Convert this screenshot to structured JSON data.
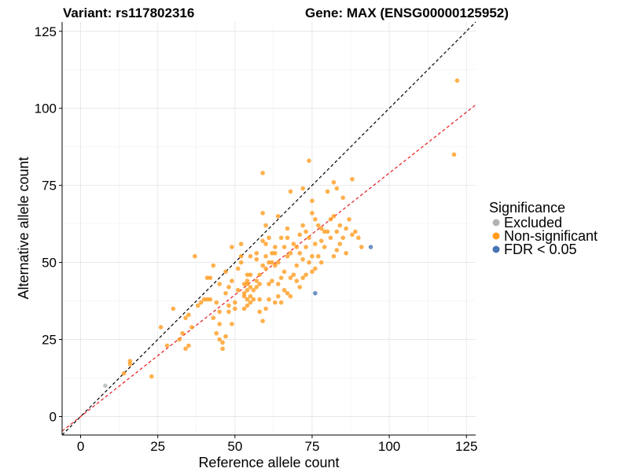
{
  "chart_data": {
    "type": "scatter",
    "title_left": "Variant: rs117802316",
    "title_right": "Gene: MAX (ENSG00000125952)",
    "xlabel": "Reference allele count",
    "ylabel": "Alternative allele count",
    "xlim": [
      -6,
      128
    ],
    "ylim": [
      -6,
      128
    ],
    "xticks": [
      0,
      25,
      50,
      75,
      100,
      125
    ],
    "yticks": [
      0,
      25,
      50,
      75,
      100,
      125
    ],
    "grid": true,
    "reference_lines": [
      {
        "name": "identity",
        "color": "#000000",
        "style": "dashed",
        "slope": 1,
        "intercept": 0
      },
      {
        "name": "fitted",
        "color": "#e41a1c",
        "style": "dashed",
        "slope": 0.79,
        "intercept": 0
      }
    ],
    "legend": {
      "title": "Significance",
      "position": "right",
      "entries": [
        {
          "label": "Excluded",
          "color": "#b3b3b3"
        },
        {
          "label": "Non-significant",
          "color": "#ff9a1a"
        },
        {
          "label": "FDR < 0.05",
          "color": "#4575b4"
        }
      ]
    },
    "series": [
      {
        "name": "Excluded",
        "color": "#b3b3b3",
        "points": [
          [
            8,
            10
          ]
        ]
      },
      {
        "name": "FDR < 0.05",
        "color": "#4575b4",
        "points": [
          [
            76,
            40
          ],
          [
            94,
            55
          ]
        ]
      },
      {
        "name": "Non-significant",
        "color": "#ff9a1a",
        "points": [
          [
            14,
            14
          ],
          [
            16,
            18
          ],
          [
            16,
            17
          ],
          [
            23,
            13
          ],
          [
            26,
            29
          ],
          [
            28,
            23
          ],
          [
            30,
            35
          ],
          [
            32,
            25
          ],
          [
            33,
            27
          ],
          [
            34,
            22
          ],
          [
            34,
            32
          ],
          [
            35,
            23
          ],
          [
            35,
            33
          ],
          [
            36,
            29
          ],
          [
            37,
            52
          ],
          [
            38,
            36
          ],
          [
            39,
            37
          ],
          [
            40,
            38
          ],
          [
            41,
            38
          ],
          [
            41,
            45
          ],
          [
            42,
            38
          ],
          [
            42,
            45
          ],
          [
            43,
            32
          ],
          [
            43,
            49
          ],
          [
            44,
            37
          ],
          [
            44,
            27
          ],
          [
            45,
            25
          ],
          [
            45,
            30
          ],
          [
            45,
            34
          ],
          [
            45,
            43
          ],
          [
            46,
            22
          ],
          [
            46,
            24
          ],
          [
            47,
            40
          ],
          [
            47,
            47
          ],
          [
            47,
            26
          ],
          [
            48,
            34
          ],
          [
            48,
            36
          ],
          [
            48,
            42
          ],
          [
            49,
            30
          ],
          [
            49,
            44
          ],
          [
            49,
            55
          ],
          [
            50,
            35
          ],
          [
            50,
            37
          ],
          [
            51,
            41
          ],
          [
            51,
            48
          ],
          [
            52,
            50
          ],
          [
            52,
            52
          ],
          [
            52,
            56
          ],
          [
            53,
            35
          ],
          [
            53,
            39
          ],
          [
            53,
            40
          ],
          [
            53,
            43
          ],
          [
            54,
            36
          ],
          [
            54,
            38
          ],
          [
            54,
            41
          ],
          [
            54,
            43
          ],
          [
            54,
            44
          ],
          [
            54,
            46
          ],
          [
            55,
            37
          ],
          [
            55,
            39
          ],
          [
            55,
            42
          ],
          [
            55,
            46
          ],
          [
            55,
            52
          ],
          [
            56,
            38
          ],
          [
            56,
            41
          ],
          [
            57,
            42
          ],
          [
            57,
            44
          ],
          [
            57,
            51
          ],
          [
            57,
            53
          ],
          [
            58,
            34
          ],
          [
            58,
            38
          ],
          [
            58,
            43
          ],
          [
            58,
            46
          ],
          [
            59,
            31
          ],
          [
            59,
            49
          ],
          [
            59,
            57
          ],
          [
            59,
            66
          ],
          [
            59,
            79
          ],
          [
            60,
            35
          ],
          [
            60,
            48
          ],
          [
            60,
            52
          ],
          [
            60,
            56
          ],
          [
            60,
            62
          ],
          [
            61,
            38
          ],
          [
            61,
            43
          ],
          [
            61,
            50
          ],
          [
            61,
            58
          ],
          [
            62,
            44
          ],
          [
            62,
            50
          ],
          [
            62,
            53
          ],
          [
            63,
            37
          ],
          [
            63,
            49
          ],
          [
            63,
            53
          ],
          [
            63,
            55
          ],
          [
            64,
            39
          ],
          [
            64,
            43
          ],
          [
            64,
            50
          ],
          [
            64,
            65
          ],
          [
            65,
            37
          ],
          [
            65,
            45
          ],
          [
            65,
            58
          ],
          [
            66,
            41
          ],
          [
            66,
            47
          ],
          [
            66,
            55
          ],
          [
            67,
            40
          ],
          [
            67,
            52
          ],
          [
            67,
            58
          ],
          [
            67,
            61
          ],
          [
            68,
            39
          ],
          [
            68,
            45
          ],
          [
            68,
            53
          ],
          [
            68,
            73
          ],
          [
            69,
            46
          ],
          [
            69,
            56
          ],
          [
            70,
            44
          ],
          [
            70,
            49
          ],
          [
            70,
            55
          ],
          [
            71,
            42
          ],
          [
            71,
            53
          ],
          [
            71,
            59
          ],
          [
            72,
            45
          ],
          [
            72,
            51
          ],
          [
            72,
            62
          ],
          [
            72,
            74
          ],
          [
            73,
            46
          ],
          [
            73,
            55
          ],
          [
            73,
            60
          ],
          [
            74,
            50
          ],
          [
            74,
            58
          ],
          [
            74,
            83
          ],
          [
            75,
            47
          ],
          [
            75,
            52
          ],
          [
            75,
            66
          ],
          [
            75,
            70
          ],
          [
            76,
            48
          ],
          [
            76,
            56
          ],
          [
            76,
            64
          ],
          [
            77,
            52
          ],
          [
            77,
            62
          ],
          [
            78,
            50
          ],
          [
            78,
            57
          ],
          [
            78,
            61
          ],
          [
            79,
            55
          ],
          [
            79,
            60
          ],
          [
            80,
            60
          ],
          [
            80,
            73
          ],
          [
            81,
            58
          ],
          [
            81,
            64
          ],
          [
            82,
            52
          ],
          [
            82,
            65
          ],
          [
            82,
            76
          ],
          [
            83,
            54
          ],
          [
            83,
            60
          ],
          [
            83,
            74
          ],
          [
            84,
            56
          ],
          [
            84,
            62
          ],
          [
            85,
            58
          ],
          [
            85,
            71
          ],
          [
            86,
            53
          ],
          [
            86,
            61
          ],
          [
            87,
            64
          ],
          [
            88,
            77
          ],
          [
            88,
            59
          ],
          [
            89,
            60
          ],
          [
            90,
            58
          ],
          [
            91,
            55
          ],
          [
            121,
            85
          ],
          [
            122,
            109
          ]
        ]
      }
    ]
  }
}
